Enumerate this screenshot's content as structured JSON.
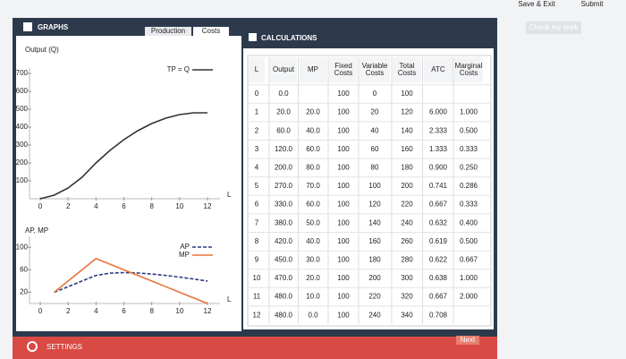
{
  "top_bar": {
    "save_exit": "Save & Exit",
    "submit": "Submit",
    "check": "Check my work"
  },
  "graphs_panel": {
    "title": "GRAPHS",
    "tabs": [
      "Production",
      "Costs"
    ]
  },
  "chart_data": [
    {
      "type": "line",
      "y_label": "Output (Q)",
      "x_label": "L",
      "x": [
        0,
        1,
        2,
        3,
        4,
        5,
        6,
        7,
        8,
        9,
        10,
        11,
        12
      ],
      "series": [
        {
          "name": "TP = Q",
          "color": "#333333",
          "line_style": "solid",
          "values": [
            0,
            20,
            60,
            120,
            200,
            270,
            330,
            380,
            420,
            450,
            470,
            480,
            480
          ]
        }
      ],
      "xlim": [
        0,
        12
      ],
      "ylim": [
        0,
        700
      ],
      "xticks": [
        0,
        2,
        4,
        6,
        8,
        10,
        12
      ],
      "yticks": [
        100,
        200,
        300,
        400,
        500,
        600,
        700
      ]
    },
    {
      "type": "line",
      "y_label": "AP, MP",
      "x_label": "L",
      "x": [
        1,
        2,
        3,
        4,
        5,
        6,
        7,
        8,
        9,
        10,
        11,
        12
      ],
      "series": [
        {
          "name": "AP",
          "color": "#2b3a7e",
          "line_style": "dashed",
          "values": [
            20,
            30,
            40,
            50,
            54,
            55,
            54.3,
            52.5,
            50,
            47,
            43.6,
            40
          ]
        },
        {
          "name": "MP",
          "color": "#e8733a",
          "line_style": "solid",
          "values": [
            20,
            40,
            60,
            80,
            70,
            60,
            50,
            40,
            30,
            20,
            10,
            0
          ]
        }
      ],
      "xlim": [
        0,
        12
      ],
      "ylim": [
        0,
        110
      ],
      "xticks": [
        0,
        2,
        4,
        6,
        8,
        10,
        12
      ],
      "yticks": [
        20,
        60,
        100
      ]
    }
  ],
  "calculations": {
    "title": "CALCULATIONS",
    "table": {
      "headers": [
        [
          "L"
        ],
        [
          "Output"
        ],
        [
          "MP"
        ],
        [
          "Fixed",
          "Costs"
        ],
        [
          "Variable",
          "Costs"
        ],
        [
          "Total",
          "Costs"
        ],
        [
          "ATC"
        ],
        [
          "Marginal",
          "Costs"
        ]
      ],
      "rows": [
        [
          "0",
          "0.0",
          null,
          "100",
          "0",
          "100",
          null,
          null
        ],
        [
          "1",
          "20.0",
          "20.0",
          "100",
          "20",
          "120",
          "6.000",
          "1.000"
        ],
        [
          "2",
          "60.0",
          "40.0",
          "100",
          "40",
          "140",
          "2.333",
          "0.500"
        ],
        [
          "3",
          "120.0",
          "60.0",
          "100",
          "60",
          "160",
          "1.333",
          "0.333"
        ],
        [
          "4",
          "200.0",
          "80.0",
          "100",
          "80",
          "180",
          "0.900",
          "0.250"
        ],
        [
          "5",
          "270.0",
          "70.0",
          "100",
          "100",
          "200",
          "0.741",
          "0.286"
        ],
        [
          "6",
          "330.0",
          "60.0",
          "100",
          "120",
          "220",
          "0.667",
          "0.333"
        ],
        [
          "7",
          "380.0",
          "50.0",
          "100",
          "140",
          "240",
          "0.632",
          "0.400"
        ],
        [
          "8",
          "420.0",
          "40.0",
          "100",
          "160",
          "260",
          "0.619",
          "0.500"
        ],
        [
          "9",
          "450.0",
          "30.0",
          "100",
          "180",
          "280",
          "0.622",
          "0.667"
        ],
        [
          "10",
          "470.0",
          "20.0",
          "100",
          "200",
          "300",
          "0.638",
          "1.000"
        ],
        [
          "11",
          "480.0",
          "10.0",
          "100",
          "220",
          "320",
          "0.667",
          "2.000"
        ],
        [
          "12",
          "480.0",
          "0.0",
          "100",
          "240",
          "340",
          "0.708",
          null
        ]
      ]
    }
  },
  "footer": {
    "settings": "SETTINGS",
    "next": "Next"
  }
}
